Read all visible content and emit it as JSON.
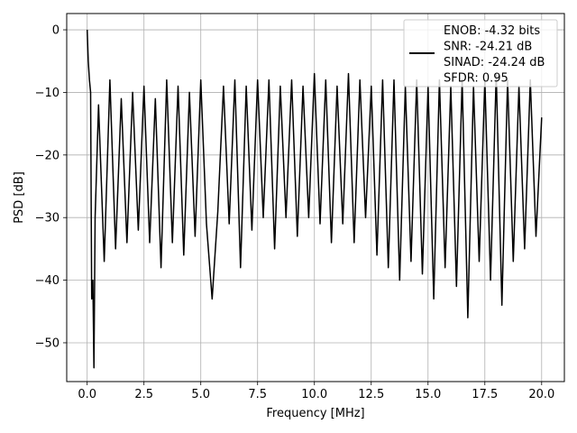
{
  "chart_data": {
    "type": "line",
    "title": "",
    "xlabel": "Frequency [MHz]",
    "ylabel": "PSD [dB]",
    "xlim": [
      -0.9,
      21.0
    ],
    "ylim": [
      -56.2,
      2.6
    ],
    "xticks": [
      0.0,
      2.5,
      5.0,
      7.5,
      10.0,
      12.5,
      15.0,
      17.5,
      20.0
    ],
    "xtick_labels": [
      "0.0",
      "2.5",
      "5.0",
      "7.5",
      "10.0",
      "12.5",
      "15.0",
      "17.5",
      "20.0"
    ],
    "yticks": [
      0,
      -10,
      -20,
      -30,
      -40,
      -50
    ],
    "ytick_labels": [
      "0",
      "−10",
      "−20",
      "−30",
      "−40",
      "−50"
    ],
    "grid": true,
    "legend_position": "top-right",
    "legend_lines": [
      "ENOB: -4.32 bits",
      "SNR: -24.21 dB",
      "SINAD: -24.24 dB",
      "SFDR: 0.95"
    ],
    "series": [
      {
        "color": "#000000",
        "x": [
          0.0,
          0.05,
          0.1,
          0.15,
          0.2,
          0.25,
          0.3,
          0.35,
          0.5,
          0.75,
          1.0,
          1.25,
          1.5,
          1.75,
          2.0,
          2.25,
          2.5,
          2.75,
          3.0,
          3.25,
          3.5,
          3.75,
          4.0,
          4.25,
          4.5,
          4.75,
          5.0,
          5.25,
          5.5,
          5.75,
          6.0,
          6.25,
          6.5,
          6.75,
          7.0,
          7.25,
          7.5,
          7.75,
          8.0,
          8.25,
          8.5,
          8.75,
          9.0,
          9.25,
          9.5,
          9.75,
          10.0,
          10.25,
          10.5,
          10.75,
          11.0,
          11.25,
          11.5,
          11.75,
          12.0,
          12.25,
          12.5,
          12.75,
          13.0,
          13.25,
          13.5,
          13.75,
          14.0,
          14.25,
          14.5,
          14.75,
          15.0,
          15.25,
          15.5,
          15.75,
          16.0,
          16.25,
          16.5,
          16.75,
          17.0,
          17.25,
          17.5,
          17.75,
          18.0,
          18.25,
          18.5,
          18.75,
          19.0,
          19.25,
          19.5,
          19.75,
          20.0
        ],
        "y": [
          0.0,
          -5,
          -8,
          -10,
          -43,
          -40,
          -54,
          -30,
          -12,
          -37,
          -8,
          -35,
          -11,
          -34,
          -10,
          -32,
          -9,
          -34,
          -11,
          -38,
          -8,
          -34,
          -9,
          -36,
          -10,
          -33,
          -8,
          -31,
          -43,
          -29,
          -9,
          -31,
          -8,
          -38,
          -9,
          -32,
          -8,
          -30,
          -8,
          -35,
          -9,
          -30,
          -8,
          -33,
          -9,
          -30,
          -7,
          -31,
          -8,
          -34,
          -9,
          -31,
          -7,
          -34,
          -8,
          -30,
          -9,
          -36,
          -8,
          -38,
          -8,
          -40,
          -9,
          -37,
          -8,
          -39,
          -9,
          -43,
          -8,
          -38,
          -9,
          -41,
          -8,
          -46,
          -9,
          -37,
          -8,
          -40,
          -7,
          -44,
          -8,
          -37,
          -9,
          -35,
          -8,
          -33,
          -14
        ]
      }
    ]
  }
}
